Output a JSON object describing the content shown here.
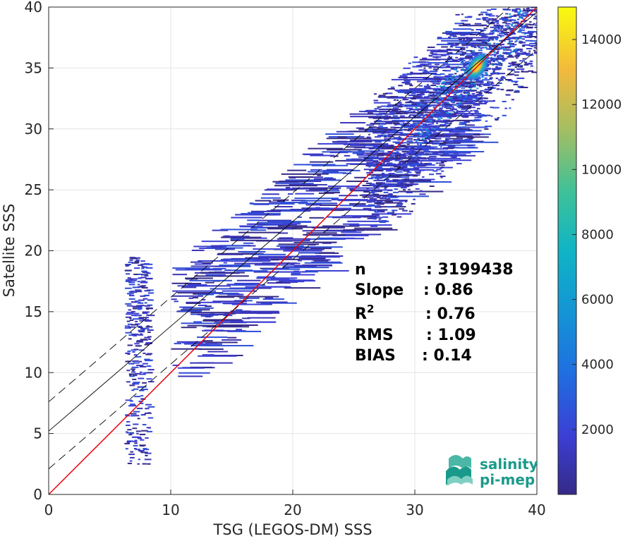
{
  "chart_data": {
    "type": "heatmap",
    "title": "",
    "xlabel": "TSG (LEGOS-DM) SSS",
    "ylabel": "Satellite SSS",
    "xlim": [
      0,
      40
    ],
    "ylim": [
      0,
      40
    ],
    "x_ticks": [
      "0",
      "10",
      "20",
      "30",
      "40"
    ],
    "y_ticks": [
      "0",
      "5",
      "10",
      "15",
      "20",
      "25",
      "30",
      "35",
      "40"
    ],
    "grid": true,
    "colorbar": {
      "range": [
        0,
        15000
      ],
      "ticks": [
        "2000",
        "4000",
        "6000",
        "8000",
        "10000",
        "12000",
        "14000"
      ],
      "tick_values": [
        2000,
        4000,
        6000,
        8000,
        10000,
        12000,
        14000
      ]
    },
    "density_peak": {
      "x": 35.1,
      "y": 35.1
    },
    "lines": [
      {
        "kind": "identity",
        "color": "#e8000b",
        "points": [
          [
            0,
            0
          ],
          [
            40,
            40
          ]
        ]
      },
      {
        "kind": "regression",
        "color": "#000000",
        "dash": "solid",
        "points": [
          [
            0,
            5.2
          ],
          [
            40,
            39.6
          ]
        ]
      },
      {
        "kind": "regression-upper",
        "color": "#000000",
        "dash": "dashed",
        "points": [
          [
            0,
            7.6
          ],
          [
            40,
            41.9
          ]
        ]
      },
      {
        "kind": "regression-lower",
        "color": "#000000",
        "dash": "dashed",
        "points": [
          [
            0,
            2.1
          ],
          [
            40,
            36.5
          ]
        ]
      }
    ],
    "stats": [
      {
        "name": "n",
        "value": ": 3199438"
      },
      {
        "name": "Slope",
        "value": ": 0.86"
      },
      {
        "name": "R",
        "sup": "2",
        "value": ": 0.76"
      },
      {
        "name": "RMS",
        "value": ": 1.09"
      },
      {
        "name": "BIAS",
        "value": ": 0.14"
      }
    ]
  },
  "logo": {
    "line1": "salinity",
    "line2": "pi-mep",
    "color": "#1a9a8a"
  },
  "colors": {
    "colormap": "parula",
    "low": "#352a87",
    "high": "#f9fb0e"
  }
}
